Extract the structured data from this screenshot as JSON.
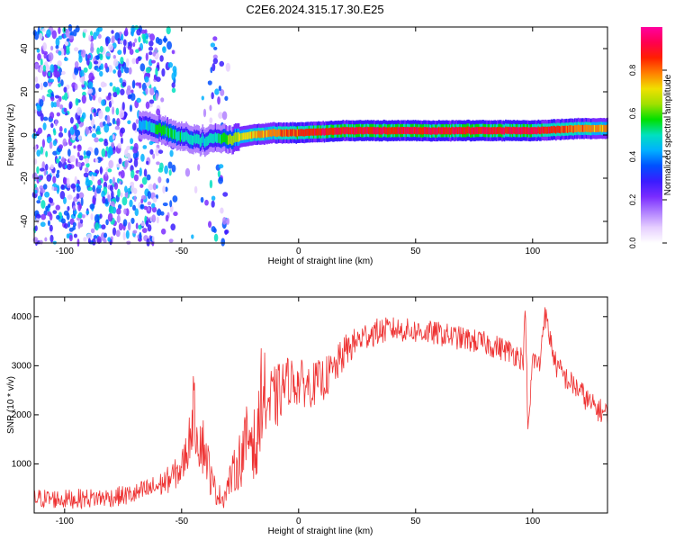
{
  "title": "C2E6.2024.315.17.30.E25",
  "chart_data": [
    {
      "type": "heatmap",
      "title": "",
      "xlabel": "Height of straight line (km)",
      "ylabel": "Frequency (Hz)",
      "xlim": [
        -113,
        132
      ],
      "ylim": [
        -50,
        50
      ],
      "xticks": [
        -100,
        -50,
        0,
        50,
        100
      ],
      "yticks": [
        -40,
        -20,
        0,
        20,
        40
      ],
      "colorbar": {
        "label": "Normalized spectral amplitude",
        "range": [
          0.0,
          1.0
        ],
        "ticks": [
          0.0,
          0.2,
          0.4,
          0.6,
          0.8
        ],
        "colormap": [
          "#ffffff",
          "#e6cfff",
          "#b080ff",
          "#7a2cff",
          "#3a1cff",
          "#0050ff",
          "#00b0ff",
          "#00e0c0",
          "#00e000",
          "#a0e000",
          "#f0e000",
          "#ff8000",
          "#ff2000",
          "#ff0050",
          "#ff00a0"
        ]
      },
      "ridge": {
        "x": [
          -65,
          -60,
          -55,
          -50,
          -45,
          -40,
          -35,
          -30,
          -20,
          -10,
          0,
          20,
          40,
          60,
          80,
          100,
          120,
          132
        ],
        "y": [
          4,
          3,
          1,
          -1,
          -2,
          -3,
          -1,
          -2,
          0,
          1,
          1,
          2,
          2,
          2,
          2,
          2,
          3,
          3
        ],
        "peak_amplitude": [
          0.45,
          0.55,
          0.55,
          0.5,
          0.5,
          0.45,
          0.5,
          0.6,
          0.75,
          0.8,
          0.85,
          0.9,
          0.9,
          0.9,
          0.9,
          0.9,
          0.8,
          0.75
        ]
      },
      "noise_region_km": [
        -113,
        -30
      ]
    },
    {
      "type": "line",
      "title": "",
      "xlabel": "Height of straight line (km)",
      "ylabel": "SNR (10 * v/v)",
      "xlim": [
        -113,
        132
      ],
      "ylim": [
        0,
        4400
      ],
      "xticks": [
        -100,
        -50,
        0,
        50,
        100
      ],
      "yticks": [
        1000,
        2000,
        3000,
        4000
      ],
      "color": "#ee3333",
      "series": [
        {
          "x": [
            -113,
            -100,
            -90,
            -80,
            -70,
            -60,
            -55,
            -50,
            -47,
            -45,
            -43,
            -40,
            -37,
            -35,
            -32,
            -30,
            -25,
            -20,
            -18,
            -16,
            -14,
            -12,
            -10,
            -5,
            0,
            5,
            10,
            15,
            20,
            25,
            30,
            40,
            50,
            60,
            70,
            80,
            90,
            96,
            97,
            98,
            100,
            103,
            105,
            110,
            115,
            120,
            125,
            132
          ],
          "y": [
            300,
            280,
            300,
            320,
            380,
            550,
            700,
            900,
            1400,
            2100,
            1600,
            1300,
            600,
            400,
            300,
            600,
            1100,
            1700,
            1100,
            2500,
            2300,
            2200,
            2300,
            2700,
            2650,
            2600,
            2700,
            2900,
            3300,
            3500,
            3650,
            3750,
            3700,
            3650,
            3550,
            3450,
            3300,
            3150,
            4200,
            1500,
            3150,
            3000,
            4100,
            3000,
            2700,
            2500,
            2200,
            2000
          ],
          "noise_amplitude": [
            200,
            200,
            200,
            200,
            220,
            250,
            280,
            350,
            500,
            700,
            700,
            600,
            350,
            250,
            200,
            300,
            600,
            900,
            600,
            1000,
            900,
            800,
            700,
            500,
            500,
            450,
            450,
            400,
            350,
            300,
            300,
            250,
            250,
            250,
            250,
            250,
            250,
            250,
            250,
            250,
            250,
            250,
            250,
            250,
            250,
            250,
            250,
            250
          ]
        }
      ]
    }
  ]
}
